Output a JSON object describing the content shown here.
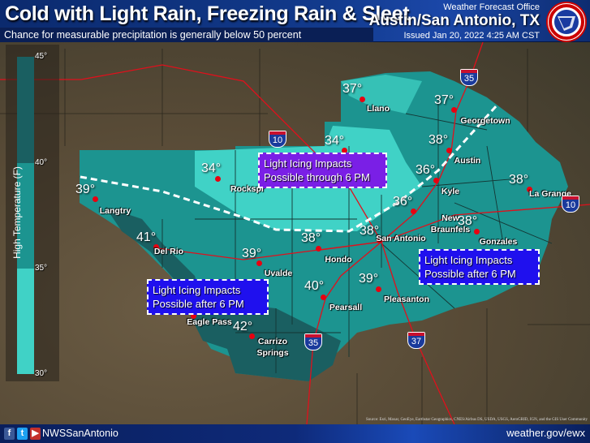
{
  "header": {
    "title": "Cold with Light Rain, Freezing Rain & Sleet",
    "subtitle": "Chance for measurable precipitation is generally below 50 percent",
    "office_label": "Weather Forecast Office",
    "office_name": "Austin/San Antonio, TX",
    "issued": "Issued Jan 20, 2022 4:25 AM CST",
    "logo_text": "NATIONAL WEATHER SERVICE"
  },
  "legend": {
    "title": "High Temperature (F)",
    "ticks": [
      "45°",
      "40°",
      "35°",
      "30°"
    ],
    "colors": {
      "40-45": "#1a5f61",
      "35-40": "#1c9490",
      "30-35": "#40d2c6"
    }
  },
  "cities": [
    {
      "name": "Llano",
      "temp": "37°"
    },
    {
      "name": "Georgetown",
      "temp": "37°"
    },
    {
      "name": "Fredericksburg",
      "visible_name": "ksburg",
      "temp": "34°"
    },
    {
      "name": "Rocksprings",
      "visible_name": "Rockspr",
      "temp": "34°"
    },
    {
      "name": "Austin",
      "temp": "38°"
    },
    {
      "name": "Kyle",
      "temp": "36°"
    },
    {
      "name": "La Grange",
      "temp": "38°"
    },
    {
      "name": "Langtry",
      "temp": "39°"
    },
    {
      "name": "",
      "temp": "36°"
    },
    {
      "name": "New Braunfels",
      "temp": ""
    },
    {
      "name": "Gonzales",
      "temp": "38°"
    },
    {
      "name": "San Antonio",
      "temp": "38°"
    },
    {
      "name": "Hondo",
      "temp": "38°"
    },
    {
      "name": "Del Rio",
      "temp": "41°"
    },
    {
      "name": "Uvalde",
      "temp": "39°"
    },
    {
      "name": "Pearsall",
      "temp": "40°"
    },
    {
      "name": "Pleasanton",
      "temp": "39°"
    },
    {
      "name": "Carrizo Springs",
      "temp": "42°"
    },
    {
      "name": "Eagle Pass",
      "temp": ""
    }
  ],
  "callouts": [
    {
      "line1": "Light Icing Impacts",
      "line2": "Possible through 6 PM",
      "color": "#7a1fe6"
    },
    {
      "line1": "Light Icing Impacts",
      "line2": "Possible after 6 PM",
      "color": "#1f10ee"
    },
    {
      "line1": "Light Icing Impacts",
      "line2": "Possible after 6 PM",
      "color": "#1f10ee"
    }
  ],
  "interstates": [
    "35",
    "10",
    "10",
    "35",
    "37"
  ],
  "source": "Source: Esri, Maxar, GeoEye, Earthstar Geographics, CNES/Airbus DS, USDA, USGS, AeroGRID, IGN, and the GIS User Community",
  "footer": {
    "handle": "NWSSanAntonio",
    "website": "weather.gov/ewx",
    "social_icons": [
      "facebook-icon",
      "twitter-icon",
      "youtube-icon"
    ]
  }
}
